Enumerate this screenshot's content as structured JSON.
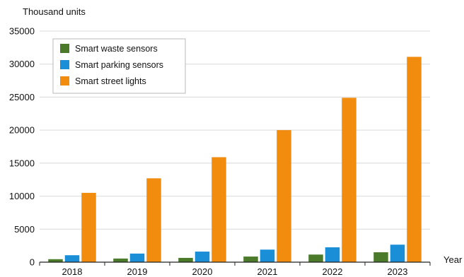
{
  "chart_data": {
    "type": "bar",
    "ylabel": "Thousand units",
    "xlabel": "Year",
    "categories": [
      "2018",
      "2019",
      "2020",
      "2021",
      "2022",
      "2023"
    ],
    "ylim": [
      0,
      35000
    ],
    "yticks": [
      0,
      5000,
      10000,
      15000,
      20000,
      25000,
      30000,
      35000
    ],
    "grid": true,
    "legend_position": "top-left",
    "series": [
      {
        "name": "Smart waste sensors",
        "color": "#4a7a2a",
        "values": [
          450,
          550,
          650,
          850,
          1150,
          1500
        ]
      },
      {
        "name": "Smart parking sensors",
        "color": "#1a8fd8",
        "values": [
          1050,
          1300,
          1600,
          1900,
          2250,
          2650
        ]
      },
      {
        "name": "Smart street lights",
        "color": "#f28c0f",
        "values": [
          10500,
          12700,
          15900,
          20000,
          24900,
          31100
        ]
      }
    ]
  }
}
